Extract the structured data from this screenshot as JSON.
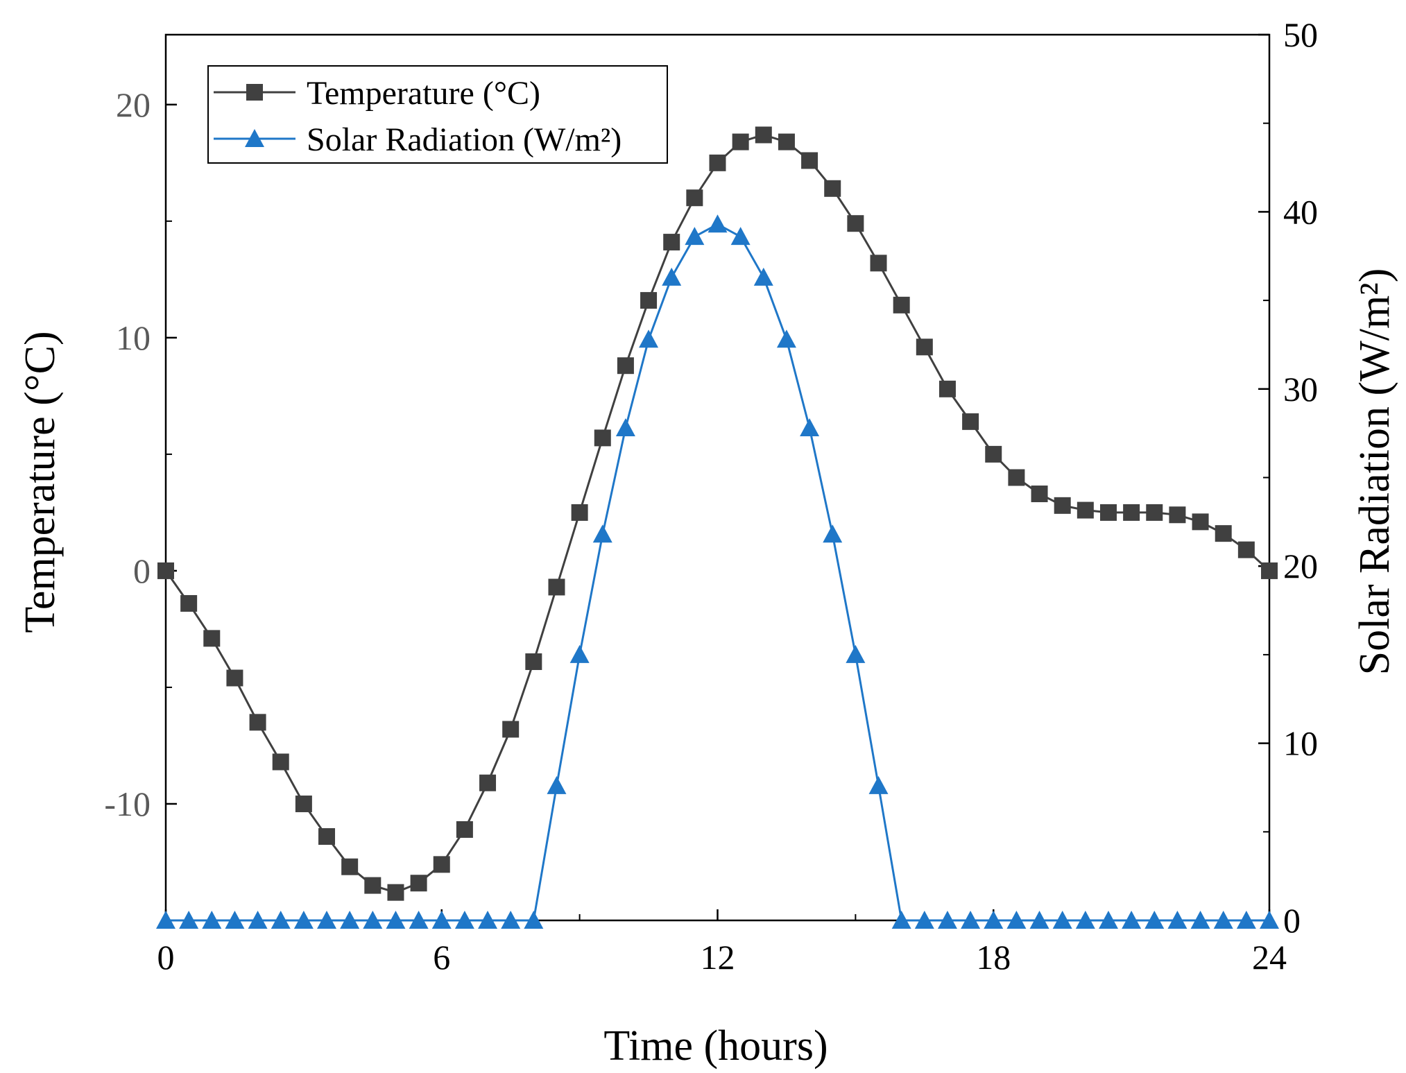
{
  "chart_data": {
    "type": "line",
    "title": "",
    "xlabel": "Time (hours)",
    "ylabel_left": "Temperature (°C)",
    "ylabel_right": "Solar Radiation (W/m²)",
    "xlim": [
      0,
      24
    ],
    "ylim_left": [
      -15,
      23
    ],
    "ylim_right": [
      0,
      50
    ],
    "x_ticks": [
      "0",
      "6",
      "12",
      "18",
      "24"
    ],
    "y_left_ticks": [
      "-10",
      "0",
      "10",
      "20"
    ],
    "y_right_ticks": [
      "0",
      "10",
      "20",
      "30",
      "40",
      "50"
    ],
    "grid": false,
    "legend_position": "top-left",
    "series": [
      {
        "name": "Temperature (°C)",
        "axis": "left",
        "color": "#404040",
        "marker": "square",
        "x": [
          0,
          0.5,
          1,
          1.5,
          2,
          2.5,
          3,
          3.5,
          4,
          4.5,
          5,
          5.5,
          6,
          6.5,
          7,
          7.5,
          8,
          8.5,
          9,
          9.5,
          10,
          10.5,
          11,
          11.5,
          12,
          12.5,
          13,
          13.5,
          14,
          14.5,
          15,
          15.5,
          16,
          16.5,
          17,
          17.5,
          18,
          18.5,
          19,
          19.5,
          20,
          20.5,
          21,
          21.5,
          22,
          22.5,
          23,
          23.5,
          24
        ],
        "y": [
          0,
          -1.4,
          -2.9,
          -4.6,
          -6.5,
          -8.2,
          -10.0,
          -11.4,
          -12.7,
          -13.5,
          -13.8,
          -13.4,
          -12.6,
          -11.1,
          -9.1,
          -6.8,
          -3.9,
          -0.7,
          2.5,
          5.7,
          8.8,
          11.6,
          14.1,
          16.0,
          17.5,
          18.4,
          18.7,
          18.4,
          17.6,
          16.4,
          14.9,
          13.2,
          11.4,
          9.6,
          7.8,
          6.4,
          5.0,
          4.0,
          3.3,
          2.8,
          2.6,
          2.5,
          2.5,
          2.5,
          2.4,
          2.1,
          1.6,
          0.9,
          0
        ]
      },
      {
        "name": "Solar Radiation (W/m²)",
        "axis": "right",
        "color": "#1f77c8",
        "marker": "triangle",
        "x": [
          0,
          0.5,
          1,
          1.5,
          2,
          2.5,
          3,
          3.5,
          4,
          4.5,
          5,
          5.5,
          6,
          6.5,
          7,
          7.5,
          8,
          8.5,
          9,
          9.5,
          10,
          10.5,
          11,
          11.5,
          12,
          12.5,
          13,
          13.5,
          14,
          14.5,
          15,
          15.5,
          16,
          16.5,
          17,
          17.5,
          18,
          18.5,
          19,
          19.5,
          20,
          20.5,
          21,
          21.5,
          22,
          22.5,
          23,
          23.5,
          24
        ],
        "y": [
          0,
          0,
          0,
          0,
          0,
          0,
          0,
          0,
          0,
          0,
          0,
          0,
          0,
          0,
          0,
          0,
          0,
          7.6,
          15.0,
          21.8,
          27.8,
          32.8,
          36.3,
          38.6,
          39.3,
          38.6,
          36.3,
          32.8,
          27.8,
          21.8,
          15.0,
          7.6,
          0,
          0,
          0,
          0,
          0,
          0,
          0,
          0,
          0,
          0,
          0,
          0,
          0,
          0,
          0,
          0,
          0
        ]
      }
    ]
  }
}
